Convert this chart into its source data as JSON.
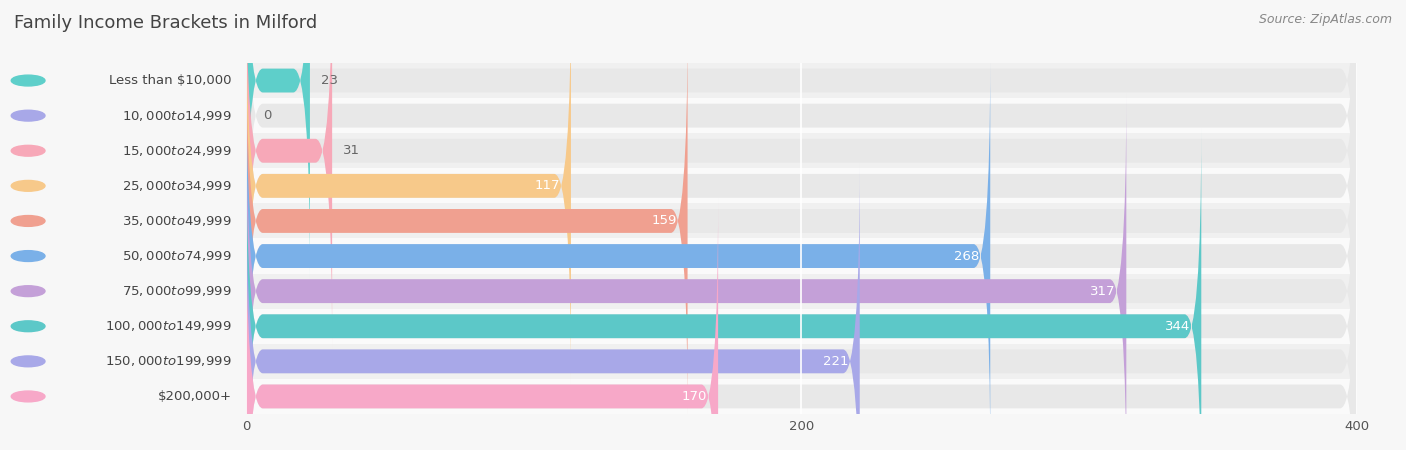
{
  "title": "Family Income Brackets in Milford",
  "source": "Source: ZipAtlas.com",
  "categories": [
    "Less than $10,000",
    "$10,000 to $14,999",
    "$15,000 to $24,999",
    "$25,000 to $34,999",
    "$35,000 to $49,999",
    "$50,000 to $74,999",
    "$75,000 to $99,999",
    "$100,000 to $149,999",
    "$150,000 to $199,999",
    "$200,000+"
  ],
  "values": [
    23,
    0,
    31,
    117,
    159,
    268,
    317,
    344,
    221,
    170
  ],
  "bar_colors": [
    "#5ecfca",
    "#a8a8e8",
    "#f7a8b8",
    "#f7c98a",
    "#f0a090",
    "#7ab0e8",
    "#c4a0d8",
    "#5cc8c8",
    "#a8a8e8",
    "#f7a8c8"
  ],
  "bg_color": "#f7f7f7",
  "bar_bg_color": "#e8e8e8",
  "row_bg_even": "#f0f0f0",
  "row_bg_odd": "#fafafa",
  "xlim": [
    0,
    400
  ],
  "xticks": [
    0,
    200,
    400
  ],
  "title_color": "#555555",
  "label_color": "#555555",
  "value_color_inside": "#ffffff",
  "value_color_outside": "#666666",
  "title_fontsize": 13,
  "label_fontsize": 9.5,
  "value_fontsize": 9.5,
  "source_fontsize": 9,
  "bar_height": 0.68,
  "value_threshold": 60
}
